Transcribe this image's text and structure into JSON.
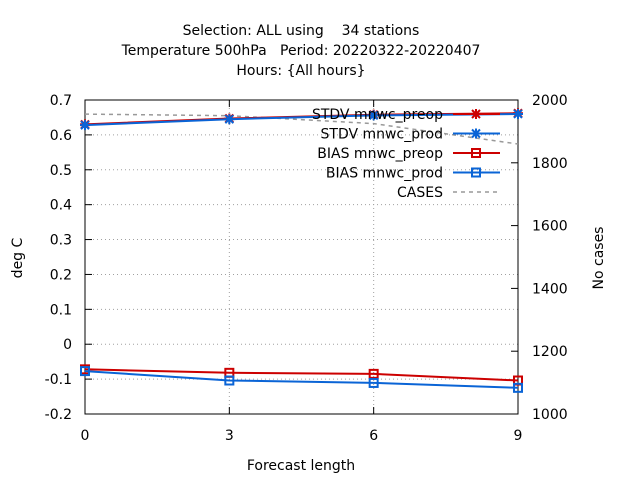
{
  "chart_data": {
    "type": "line",
    "title_lines": [
      "Selection: ALL using    34 stations",
      "Temperature 500hPa   Period: 20220322-20220407",
      "Hours: {All hours}"
    ],
    "xlabel": "Forecast length",
    "ylabel": "deg C",
    "y2label": "No cases",
    "xlim": [
      0,
      9
    ],
    "ylim": [
      -0.2,
      0.7
    ],
    "y2lim": [
      1000,
      2000
    ],
    "xticks": [
      0,
      3,
      6,
      9
    ],
    "yticks": [
      -0.2,
      -0.1,
      0,
      0.1,
      0.2,
      0.3,
      0.4,
      0.5,
      0.6,
      0.7
    ],
    "ytick_labels": [
      "-0.2",
      "-0.1",
      "0",
      "0.1",
      "0.2",
      "0.3",
      "0.4",
      "0.5",
      "0.6",
      "0.7"
    ],
    "y2ticks": [
      1000,
      1200,
      1400,
      1600,
      1800,
      2000
    ],
    "grid": true,
    "legend_position": "top-right",
    "series": [
      {
        "name": "STDV mnwc_preop",
        "axis": "y",
        "x": [
          0,
          3,
          6,
          9
        ],
        "values": [
          0.63,
          0.647,
          0.658,
          0.662
        ],
        "color": "#cc0000",
        "marker": "x"
      },
      {
        "name": "STDV mnwc_prod",
        "axis": "y",
        "x": [
          0,
          3,
          6,
          9
        ],
        "values": [
          0.628,
          0.645,
          0.656,
          0.66
        ],
        "color": "#0a64d6",
        "marker": "x"
      },
      {
        "name": "BIAS mnwc_preop",
        "axis": "y",
        "x": [
          0,
          3,
          6,
          9
        ],
        "values": [
          -0.072,
          -0.082,
          -0.085,
          -0.104
        ],
        "color": "#cc0000",
        "marker": "square"
      },
      {
        "name": "BIAS mnwc_prod",
        "axis": "y",
        "x": [
          0,
          3,
          6,
          9
        ],
        "values": [
          -0.077,
          -0.104,
          -0.111,
          -0.125
        ],
        "color": "#0a64d6",
        "marker": "square"
      },
      {
        "name": "CASES",
        "axis": "y2",
        "x": [
          0,
          3,
          6,
          9
        ],
        "values": [
          1955,
          1950,
          1925,
          1860
        ],
        "color": "#999999",
        "marker": "none",
        "dashed": true
      }
    ]
  }
}
